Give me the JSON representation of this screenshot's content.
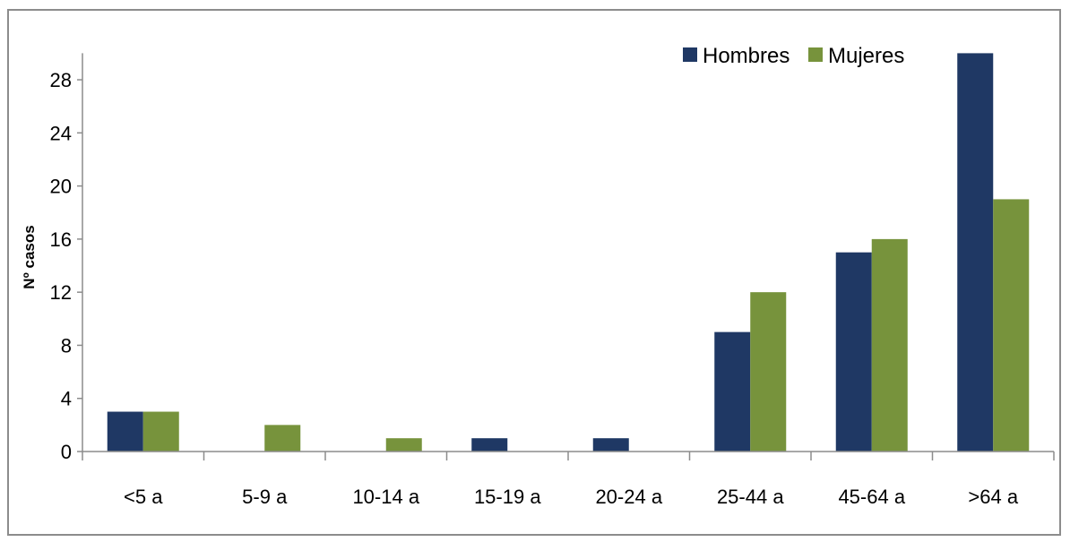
{
  "chart_data": {
    "type": "bar",
    "title": "",
    "xlabel": "",
    "ylabel": "Nº casos",
    "categories": [
      "<5 a",
      "5-9 a",
      "10-14 a",
      "15-19 a",
      "20-24 a",
      "25-44 a",
      "45-64 a",
      ">64 a"
    ],
    "series": [
      {
        "name": "Hombres",
        "color": "#1f3864",
        "values": [
          3,
          0,
          0,
          1,
          1,
          9,
          15,
          30
        ]
      },
      {
        "name": "Mujeres",
        "color": "#77933c",
        "values": [
          3,
          2,
          1,
          0,
          0,
          12,
          16,
          19
        ]
      }
    ],
    "ylim": [
      0,
      30
    ],
    "yticks": [
      0,
      4,
      8,
      12,
      16,
      20,
      24,
      28
    ],
    "grid": false,
    "legend_position": "top-right"
  }
}
